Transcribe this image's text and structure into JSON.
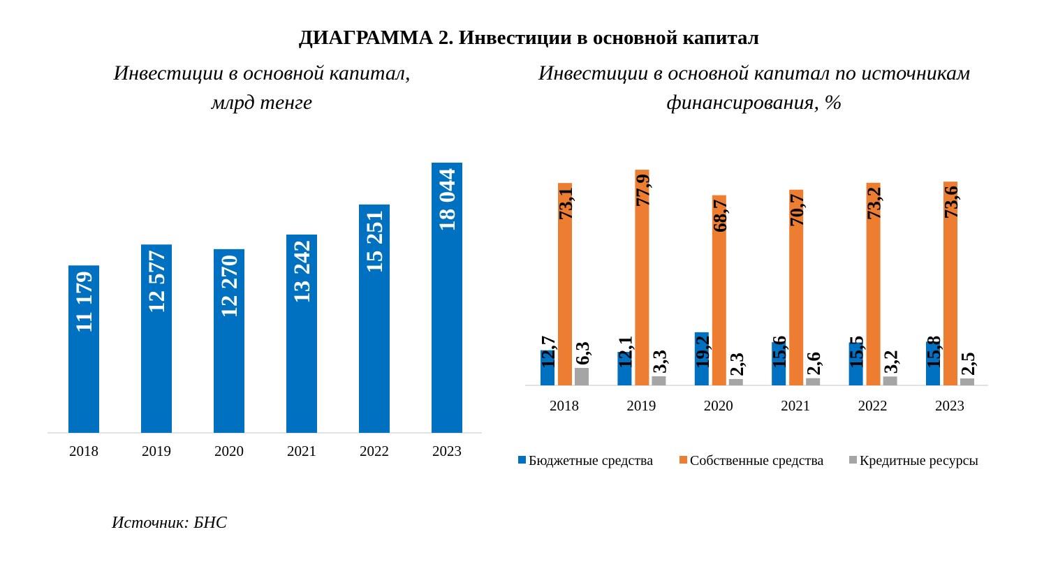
{
  "main_title": "ДИАГРАММА 2. Инвестиции в основной капитал",
  "source": "Источник: БНС",
  "chart_data": [
    {
      "type": "bar",
      "title_lines": [
        "Инвестиции в основной капитал,",
        "млрд тенге"
      ],
      "categories": [
        "2018",
        "2019",
        "2020",
        "2021",
        "2022",
        "2023"
      ],
      "values": [
        11179,
        12577,
        12270,
        13242,
        15251,
        18044
      ],
      "data_labels": [
        "11 179",
        "12 577",
        "12 270",
        "13 242",
        "15 251",
        "18 044"
      ],
      "ylim": [
        0,
        18044
      ],
      "color": "#0070C0",
      "grid": false
    },
    {
      "type": "bar",
      "title_lines": [
        "Инвестиции в основной капитал по источникам",
        "финансирования, %"
      ],
      "categories": [
        "2018",
        "2019",
        "2020",
        "2021",
        "2022",
        "2023"
      ],
      "series": [
        {
          "name": "Бюджетные средства",
          "color": "#0070C0",
          "values": [
            12.7,
            12.1,
            19.2,
            15.6,
            15.5,
            15.8
          ],
          "labels": [
            "12,7",
            "12,1",
            "19,2",
            "15,6",
            "15,5",
            "15,8"
          ]
        },
        {
          "name": "Собственные средства",
          "color": "#ED7D31",
          "values": [
            73.1,
            77.9,
            68.7,
            70.7,
            73.2,
            73.6
          ],
          "labels": [
            "73,1",
            "77,9",
            "68,7",
            "70,7",
            "73,2",
            "73,6"
          ]
        },
        {
          "name": "Кредитные ресурсы",
          "color": "#A5A5A5",
          "values": [
            6.3,
            3.3,
            2.3,
            2.6,
            3.2,
            2.5
          ],
          "labels": [
            "6,3",
            "3,3",
            "2,3",
            "2,6",
            "3,2",
            "2,5"
          ]
        }
      ],
      "ylim": [
        0,
        78
      ],
      "legend": "bottom",
      "grid": false
    }
  ]
}
